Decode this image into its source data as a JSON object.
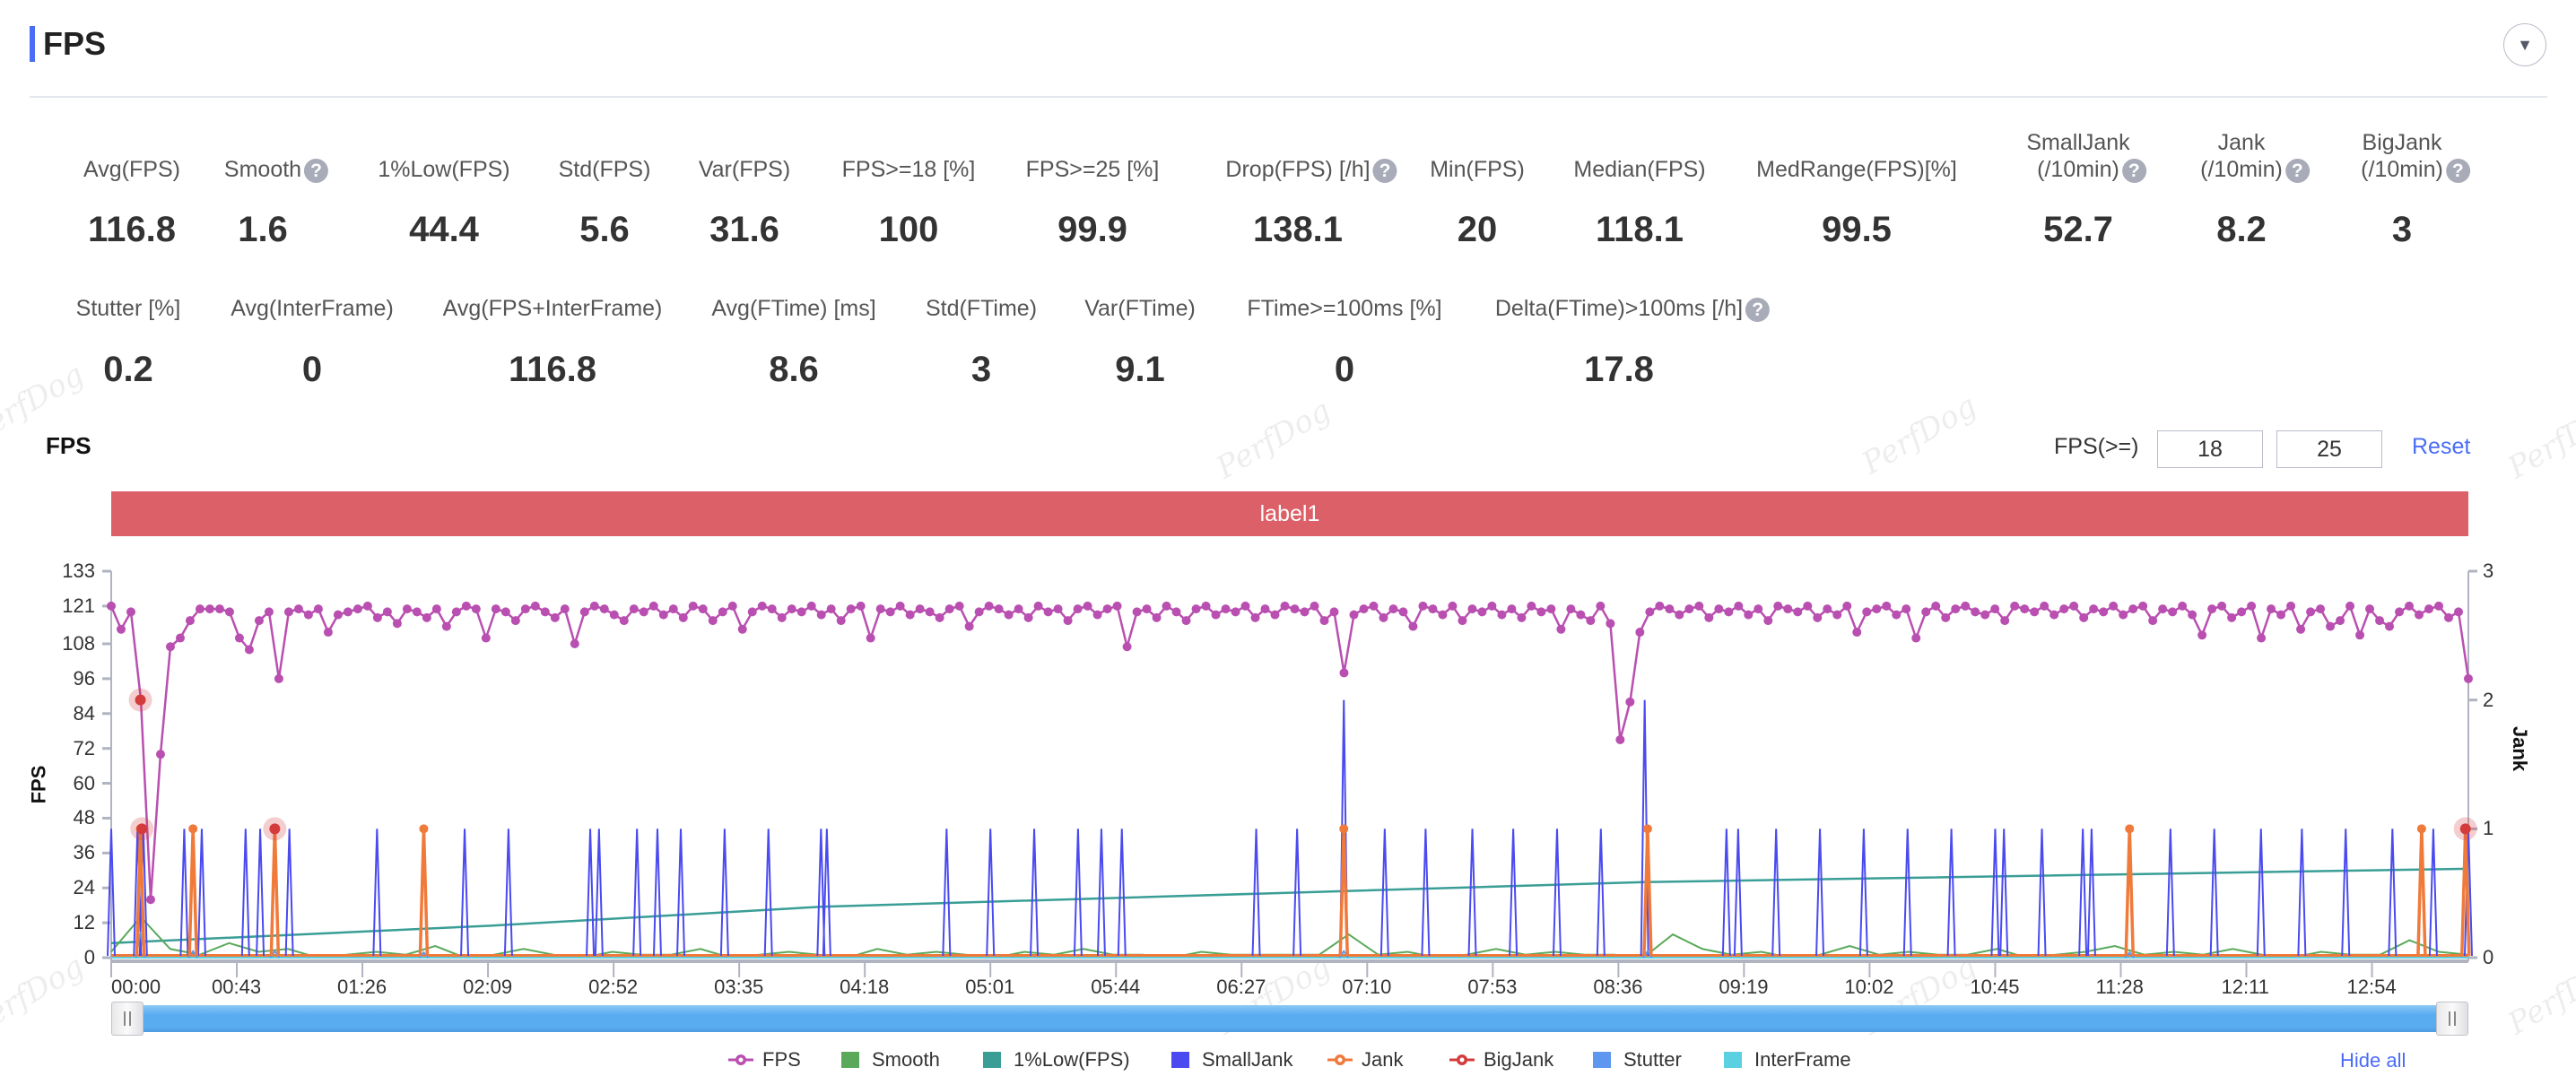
{
  "header": {
    "title": "FPS",
    "dropdown_icon": "caret-down-icon"
  },
  "stats_row1": [
    {
      "label": "Avg(FPS)",
      "value": "116.8"
    },
    {
      "label": "Smooth",
      "value": "1.6",
      "help": true
    },
    {
      "label": "1%Low(FPS)",
      "value": "44.4"
    },
    {
      "label": "Std(FPS)",
      "value": "5.6"
    },
    {
      "label": "Var(FPS)",
      "value": "31.6"
    },
    {
      "label": "FPS>=18 [%]",
      "value": "100"
    },
    {
      "label": "FPS>=25 [%]",
      "value": "99.9"
    },
    {
      "label": "Drop(FPS) [/h]",
      "value": "138.1",
      "help": true
    },
    {
      "label": "Min(FPS)",
      "value": "20"
    },
    {
      "label": "Median(FPS)",
      "value": "118.1"
    },
    {
      "label": "MedRange(FPS)[%]",
      "value": "99.5"
    },
    {
      "label_top": "SmallJank",
      "label": "(/10min)",
      "value": "52.7",
      "help": true
    },
    {
      "label_top": "Jank",
      "label": "(/10min)",
      "value": "8.2",
      "help": true
    },
    {
      "label_top": "BigJank",
      "label": "(/10min)",
      "value": "3",
      "help": true
    }
  ],
  "stats_row2": [
    {
      "label": "Stutter [%]",
      "value": "0.2"
    },
    {
      "label": "Avg(InterFrame)",
      "value": "0"
    },
    {
      "label": "Avg(FPS+InterFrame)",
      "value": "116.8"
    },
    {
      "label": "Avg(FTime) [ms]",
      "value": "8.6"
    },
    {
      "label": "Std(FTime)",
      "value": "3"
    },
    {
      "label": "Var(FTime)",
      "value": "9.1"
    },
    {
      "label": "FTime>=100ms [%]",
      "value": "0"
    },
    {
      "label": "Delta(FTime)>100ms [/h]",
      "value": "17.8",
      "help": true
    }
  ],
  "help_glyph": "?",
  "chart_panel": {
    "title": "FPS",
    "threshold_label": "FPS(>=)",
    "threshold_1": "18",
    "threshold_2": "25",
    "reset_label": "Reset",
    "label_bar": "label1",
    "hide_all_label": "Hide all",
    "watermark": "PerfDog"
  },
  "chart_data": {
    "type": "line",
    "title": "FPS",
    "ylabel": "FPS",
    "y2label": "Jank",
    "ylim": [
      0,
      133
    ],
    "y2lim": [
      0,
      3
    ],
    "yticks": [
      "133",
      "121",
      "108",
      "96",
      "84",
      "72",
      "60",
      "48",
      "36",
      "24",
      "12",
      "0"
    ],
    "y2ticks": [
      "3",
      "2",
      "1",
      "0"
    ],
    "xlim_seconds": [
      0,
      807
    ],
    "xticks": [
      "00:00",
      "00:43",
      "01:26",
      "02:09",
      "02:52",
      "03:35",
      "04:18",
      "05:01",
      "05:44",
      "06:27",
      "07:10",
      "07:53",
      "08:36",
      "09:19",
      "10:02",
      "10:45",
      "11:28",
      "12:11",
      "12:54"
    ],
    "legend_position": "bottom",
    "colors": {
      "FPS": "#b94fb0",
      "Smooth": "#5aa95a",
      "1%Low(FPS)": "#3a9e96",
      "SmallJank": "#4a4af0",
      "Jank": "#f07a3a",
      "BigJank": "#d43c3c",
      "Stutter": "#5f96f0",
      "InterFrame": "#5bd0e0"
    },
    "legend": [
      "FPS",
      "Smooth",
      "1%Low(FPS)",
      "SmallJank",
      "Jank",
      "BigJank",
      "Stutter",
      "InterFrame"
    ],
    "fps": [
      121,
      113,
      119,
      89,
      20,
      70,
      107,
      110,
      116,
      120,
      120,
      120,
      119,
      110,
      106,
      116,
      119,
      96,
      119,
      120,
      118,
      120,
      112,
      118,
      119,
      120,
      121,
      117,
      119,
      115,
      120,
      119,
      117,
      120,
      114,
      119,
      121,
      120,
      110,
      120,
      119,
      116,
      120,
      121,
      119,
      117,
      120,
      108,
      119,
      121,
      120,
      118,
      116,
      120,
      119,
      121,
      118,
      120,
      117,
      121,
      120,
      116,
      119,
      121,
      113,
      119,
      121,
      120,
      117,
      120,
      119,
      121,
      118,
      120,
      116,
      120,
      121,
      110,
      120,
      119,
      121,
      118,
      120,
      119,
      117,
      120,
      121,
      114,
      119,
      121,
      120,
      118,
      120,
      117,
      121,
      119,
      120,
      116,
      120,
      121,
      118,
      120,
      121,
      107,
      119,
      120,
      117,
      121,
      119,
      116,
      120,
      121,
      118,
      120,
      119,
      121,
      117,
      120,
      118,
      121,
      120,
      119,
      121,
      116,
      119,
      98,
      118,
      120,
      121,
      117,
      120,
      119,
      114,
      121,
      120,
      118,
      121,
      116,
      120,
      119,
      121,
      118,
      120,
      117,
      121,
      119,
      120,
      113,
      120,
      118,
      116,
      121,
      115,
      75,
      88,
      112,
      119,
      121,
      120,
      118,
      120,
      121,
      117,
      120,
      119,
      121,
      118,
      120,
      116,
      121,
      120,
      119,
      121,
      117,
      120,
      118,
      121,
      112,
      119,
      120,
      121,
      118,
      120,
      110,
      119,
      121,
      117,
      120,
      121,
      119,
      118,
      120,
      116,
      121,
      120,
      119,
      121,
      118,
      120,
      121,
      117,
      120,
      119,
      121,
      118,
      120,
      121,
      116,
      120,
      119,
      121,
      118,
      111,
      120,
      121,
      117,
      119,
      121,
      110,
      120,
      118,
      121,
      113,
      119,
      120,
      114,
      116,
      121,
      111,
      120,
      116,
      114,
      119,
      121,
      118,
      120,
      121,
      117,
      119,
      96
    ],
    "smooth": [
      2,
      14,
      3,
      1,
      5,
      2,
      3,
      0,
      1,
      2,
      1,
      4,
      0,
      1,
      3,
      1,
      0,
      2,
      1,
      1,
      3,
      0,
      1,
      2,
      1,
      0,
      3,
      1,
      2,
      1,
      0,
      2,
      1,
      3,
      1,
      1,
      0,
      2,
      1,
      1,
      1,
      1,
      8,
      1,
      2,
      0,
      1,
      3,
      1,
      2,
      1,
      1,
      0,
      8,
      3,
      1,
      2,
      0,
      1,
      4,
      1,
      2,
      1,
      1,
      3,
      0,
      1,
      2,
      4,
      1,
      2,
      1,
      3,
      1,
      0,
      2,
      1,
      1,
      6,
      2,
      1
    ],
    "low1pct": [
      [
        0,
        5
      ],
      [
        130,
        11
      ],
      [
        243,
        17.5
      ],
      [
        525,
        26
      ],
      [
        807,
        30.6
      ]
    ],
    "smalljank": [
      [
        0,
        1
      ],
      [
        9,
        1
      ],
      [
        11,
        1
      ],
      [
        25,
        1
      ],
      [
        28,
        1
      ],
      [
        31,
        1
      ],
      [
        46,
        1
      ],
      [
        51,
        1
      ],
      [
        61,
        1
      ],
      [
        91,
        1
      ],
      [
        107,
        1
      ],
      [
        121,
        1
      ],
      [
        136,
        1
      ],
      [
        164,
        1
      ],
      [
        167,
        1
      ],
      [
        180,
        1
      ],
      [
        187,
        1
      ],
      [
        195,
        1
      ],
      [
        210,
        1
      ],
      [
        225,
        1
      ],
      [
        243,
        1
      ],
      [
        245,
        1
      ],
      [
        286,
        1
      ],
      [
        301,
        1
      ],
      [
        316,
        1
      ],
      [
        331,
        1
      ],
      [
        339,
        1
      ],
      [
        346,
        1
      ],
      [
        392,
        1
      ],
      [
        406,
        1
      ],
      [
        422,
        2
      ],
      [
        436,
        1
      ],
      [
        450,
        1
      ],
      [
        466,
        1
      ],
      [
        480,
        1
      ],
      [
        495,
        1
      ],
      [
        510,
        1
      ],
      [
        525,
        2
      ],
      [
        553,
        1
      ],
      [
        557,
        1
      ],
      [
        570,
        1
      ],
      [
        585,
        1
      ],
      [
        600,
        1
      ],
      [
        615,
        1
      ],
      [
        630,
        1
      ],
      [
        645,
        1
      ],
      [
        648,
        1
      ],
      [
        661,
        1
      ],
      [
        675,
        1
      ],
      [
        678,
        1
      ],
      [
        691,
        1
      ],
      [
        705,
        1
      ],
      [
        720,
        1
      ],
      [
        736,
        1
      ],
      [
        750,
        1
      ],
      [
        765,
        1
      ],
      [
        781,
        1
      ],
      [
        791,
        1
      ],
      [
        795,
        1
      ],
      [
        807,
        1
      ]
    ],
    "jank": [
      [
        10,
        1
      ],
      [
        28,
        1
      ],
      [
        56,
        1
      ],
      [
        107,
        1
      ],
      [
        422,
        1
      ],
      [
        526,
        1
      ],
      [
        691,
        1
      ],
      [
        791,
        1
      ],
      [
        806,
        1
      ]
    ],
    "bigjank": [
      [
        10,
        2
      ],
      [
        10.5,
        1
      ],
      [
        56,
        1
      ],
      [
        806,
        1
      ]
    ],
    "stutter": [
      [
        10,
        0.2
      ],
      [
        28,
        0.05
      ],
      [
        56,
        0.05
      ],
      [
        107,
        0.04
      ],
      [
        422,
        0.05
      ],
      [
        526,
        0.05
      ],
      [
        691,
        0.04
      ]
    ],
    "interframe": [
      [
        0,
        0
      ],
      [
        807,
        0
      ]
    ]
  }
}
